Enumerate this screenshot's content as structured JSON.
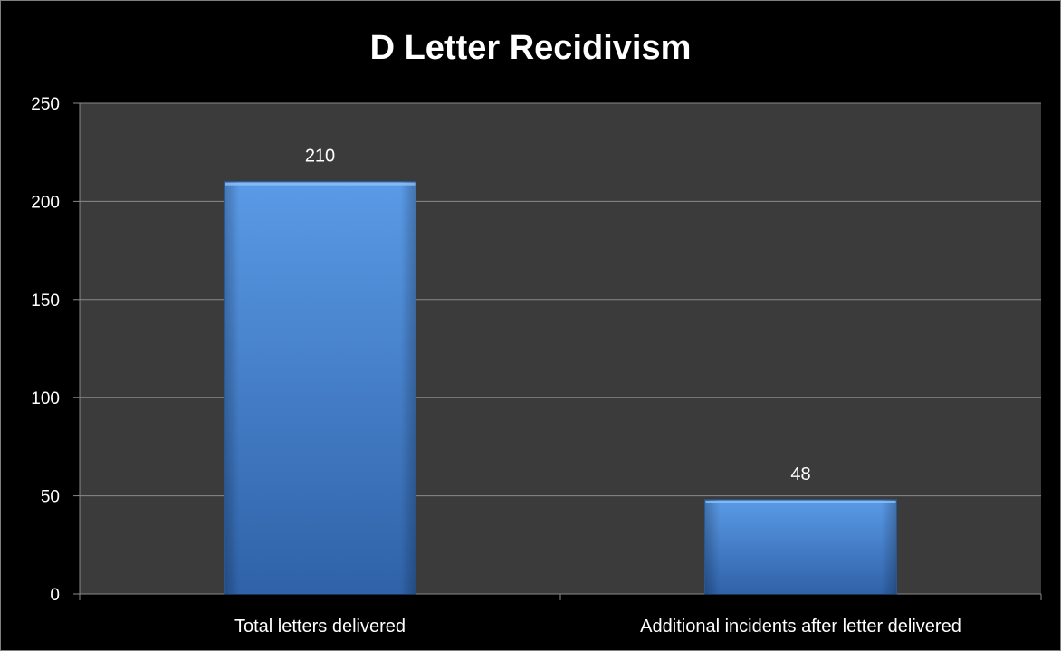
{
  "chart_data": {
    "type": "bar",
    "title": "D Letter Recidivism",
    "categories": [
      "Total letters delivered",
      "Additional incidents after letter delivered"
    ],
    "values": [
      210,
      48
    ],
    "data_labels": [
      "210",
      "48"
    ],
    "ylim": [
      0,
      250
    ],
    "yticks": [
      0,
      50,
      100,
      150,
      200,
      250
    ],
    "ytick_labels": [
      "0",
      "50",
      "100",
      "150",
      "200",
      "250"
    ],
    "xlabel": "",
    "ylabel": "",
    "grid": true,
    "legend": "none",
    "colors": {
      "background": "#000000",
      "plot_area": "#3b3b3b",
      "gridline": "#8a8a8a",
      "bar": "#3f7fcf",
      "bar_light": "#5a9ae6",
      "bar_dark": "#2f62a8",
      "text": "#ffffff"
    }
  }
}
